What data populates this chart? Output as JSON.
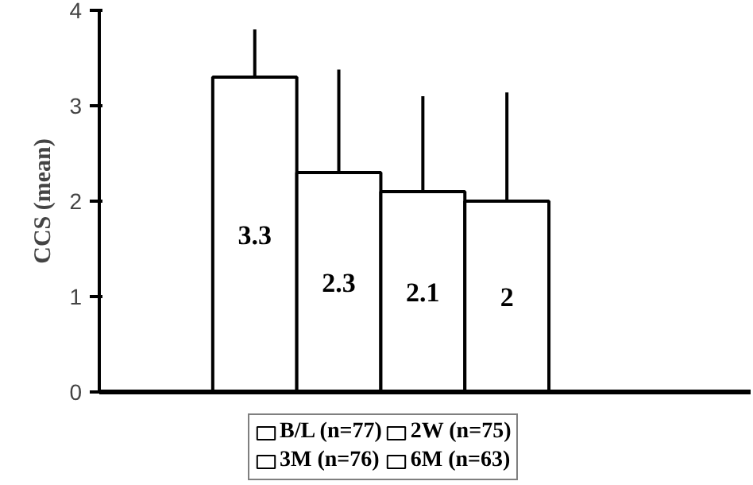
{
  "chart_data": {
    "type": "bar",
    "ylabel": "CCS (mean)",
    "categories": [
      null
    ],
    "ylim": [
      0,
      4
    ],
    "yticks": [
      0,
      1,
      2,
      3,
      4
    ],
    "grid": false,
    "legend": "bottom",
    "data_labels": true,
    "series": [
      {
        "name": "B/L (n=77)",
        "color": "#ffffff",
        "values": [
          3.3
        ],
        "errors": [
          [
            3.3,
            3.8
          ]
        ]
      },
      {
        "name": "2W (n=75)",
        "color": "#ffffff",
        "values": [
          2.3
        ],
        "errors": [
          [
            2.3,
            3.38
          ]
        ]
      },
      {
        "name": "3M (n=76)",
        "color": "#ffffff",
        "values": [
          2.1
        ],
        "errors": [
          [
            2.1,
            3.1
          ]
        ]
      },
      {
        "name": "6M (n=63)",
        "color": "#ffffff",
        "values": [
          2
        ],
        "errors": [
          [
            2,
            3.14
          ]
        ]
      }
    ]
  }
}
